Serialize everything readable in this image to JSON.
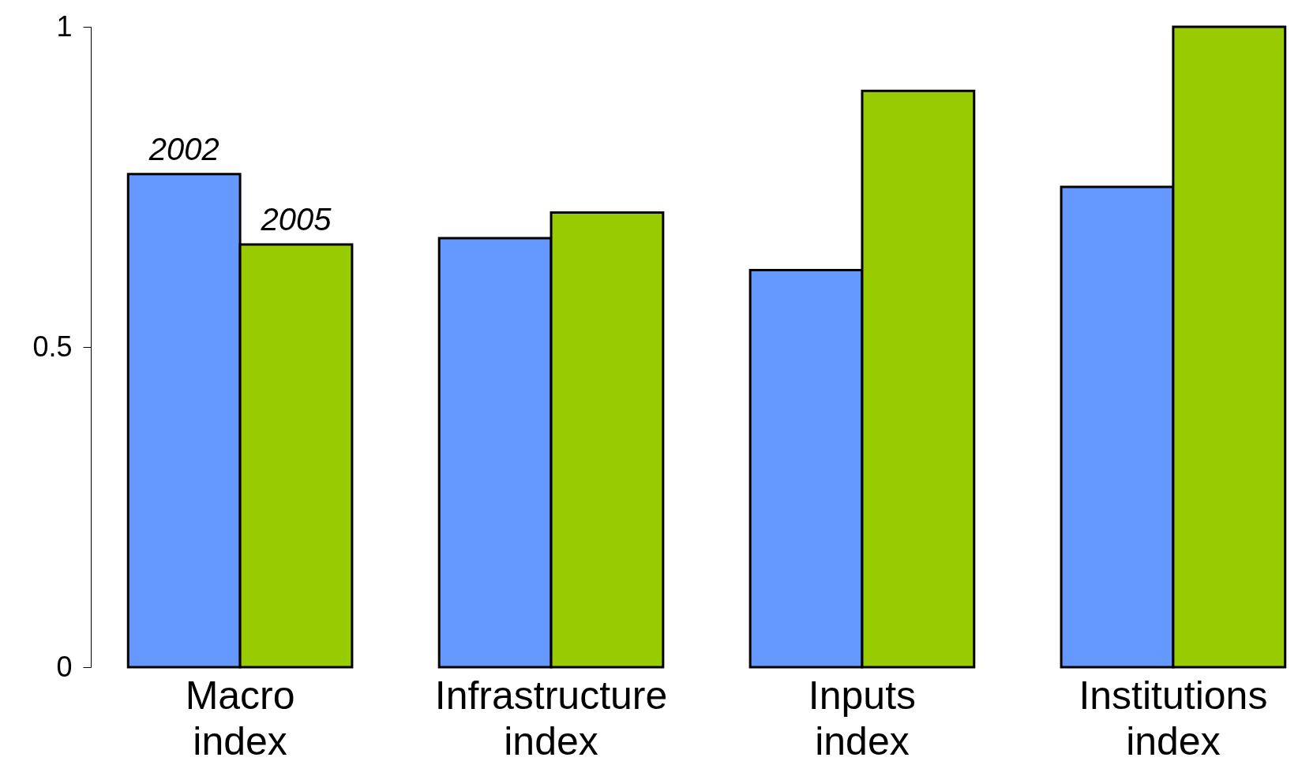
{
  "chart_data": {
    "type": "bar",
    "categories": [
      "Macro index",
      "Infrastructure index",
      "Inputs index",
      "Institutions index"
    ],
    "series": [
      {
        "name": "2002",
        "color": "#6699ff",
        "values": [
          0.77,
          0.67,
          0.62,
          0.75
        ]
      },
      {
        "name": "2005",
        "color": "#99cc00",
        "values": [
          0.66,
          0.71,
          0.9,
          1.0
        ]
      }
    ],
    "ylim": [
      0,
      1
    ],
    "yticks": [
      0,
      0.5,
      1
    ],
    "grid": false
  }
}
